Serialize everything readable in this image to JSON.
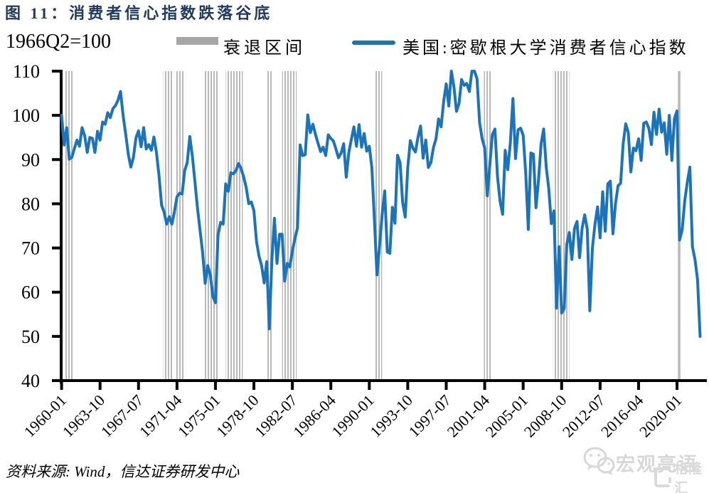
{
  "header": {
    "title": "图 11：消费者信心指数跌落谷底"
  },
  "legend": {
    "index_note": "1966Q2=100",
    "items": [
      {
        "type": "band",
        "label": "衰退区间",
        "swatch_color": "#a6a6a6"
      },
      {
        "type": "line",
        "label": "美国:密歇根大学消费者信心指数",
        "swatch_color": "#1b73b9"
      }
    ]
  },
  "footer": {
    "source": "资料来源: Wind，信达证券研发中心"
  },
  "watermark": {
    "wechat_name": "宏观亮语",
    "logo_text": "格隆汇"
  },
  "colors": {
    "series_line": "#1b73b9",
    "recession_band": "#b9b9b9",
    "legend_band_swatch": "#a6a6a6",
    "title": "#203a64",
    "axis": "#000000"
  },
  "chart_data": {
    "type": "line",
    "title": "消费者信心指数跌落谷底",
    "unit_note": "1966Q2=100",
    "grid": false,
    "legend_position": "top",
    "x_axis": {
      "start_month": "1960-01",
      "end_month": "2022-06",
      "tick_interval_months": 45,
      "tick_labels": [
        "1960-01",
        "1963-10",
        "1967-07",
        "1971-04",
        "1975-01",
        "1978-10",
        "1982-07",
        "1986-04",
        "1990-01",
        "1993-10",
        "1997-07",
        "2001-04",
        "2005-01",
        "2008-10",
        "2012-07",
        "2016-04",
        "2020-01"
      ]
    },
    "y_axis": {
      "min": 40,
      "max": 110,
      "ticks": [
        40,
        50,
        60,
        70,
        80,
        90,
        100,
        110
      ],
      "clip_above": 110
    },
    "series": [
      {
        "name": "美国:密歇根大学消费者信心指数",
        "color": "#1b73b9",
        "frequency": "quarterly",
        "start_quarter": "1960Q1",
        "values": [
          100.0,
          93.3,
          97.2,
          90.1,
          90.5,
          92.5,
          94.4,
          93.0,
          97.2,
          95.4,
          91.6,
          95.0,
          94.8,
          91.6,
          96.4,
          94.4,
          98.5,
          98.0,
          100.6,
          99.5,
          101.5,
          102.2,
          103.4,
          105.4,
          100.0,
          95.7,
          91.2,
          88.3,
          90.5,
          94.9,
          96.5,
          92.9,
          97.2,
          92.4,
          93.4,
          92.1,
          95.1,
          91.6,
          86.4,
          79.7,
          78.1,
          75.4,
          77.1,
          75.4,
          78.2,
          81.6,
          82.4,
          82.2,
          87.5,
          89.3,
          95.2,
          90.8,
          85.0,
          79.0,
          74.0,
          69.0,
          62.0,
          66.0,
          64.0,
          59.0,
          57.6,
          72.9,
          75.8,
          75.4,
          84.5,
          82.8,
          87.0,
          86.8,
          87.5,
          89.1,
          88.0,
          86.1,
          83.7,
          80.0,
          80.4,
          78.5,
          71.5,
          68.1,
          66.0,
          62.1,
          66.9,
          51.7,
          67.3,
          76.7,
          66.5,
          73.1,
          73.1,
          62.5,
          66.5,
          65.7,
          69.3,
          72.1,
          74.6,
          93.3,
          90.9,
          91.1,
          100.1,
          96.1,
          98.0,
          95.7,
          93.7,
          91.8,
          92.8,
          90.9,
          95.6,
          94.8,
          94.2,
          92.4,
          90.4,
          91.5,
          93.6,
          86.0,
          91.6,
          94.6,
          97.4,
          93.0,
          97.9,
          92.8,
          95.9,
          91.9,
          93.0,
          88.2,
          76.4,
          63.9,
          70.4,
          77.6,
          82.9,
          69.1,
          68.8,
          79.2,
          75.6,
          91.0,
          89.3,
          80.3,
          77.0,
          88.2,
          94.3,
          92.6,
          91.7,
          95.1,
          97.6,
          90.3,
          94.4,
          88.2,
          89.3,
          92.7,
          94.7,
          99.2,
          97.4,
          103.2,
          107.1,
          102.1,
          110.4,
          106.5,
          100.9,
          102.7,
          108.1,
          106.8,
          107.2,
          105.4,
          112.0,
          110.7,
          108.3,
          98.4,
          94.7,
          92.6,
          81.8,
          88.8,
          95.7,
          96.9,
          86.1,
          80.6,
          77.6,
          92.1,
          87.7,
          93.7,
          103.8,
          90.2,
          96.7,
          97.1,
          95.5,
          86.9,
          74.2,
          91.5,
          91.2,
          79.1,
          85.4,
          93.6,
          96.9,
          88.3,
          83.4,
          75.5,
          78.4,
          56.4,
          70.3,
          55.3,
          56.3,
          70.8,
          73.5,
          67.4,
          74.4,
          76.0,
          67.8,
          74.5,
          77.5,
          74.3,
          55.8,
          69.9,
          75.3,
          79.3,
          72.3,
          82.7,
          73.8,
          84.5,
          85.1,
          73.2,
          80.0,
          84.1,
          84.6,
          93.6,
          98.1,
          96.1,
          87.2,
          92.6,
          92.0,
          94.7,
          89.8,
          98.2,
          98.5,
          97.1,
          93.4,
          100.7,
          95.7,
          101.4,
          96.2,
          98.3,
          91.2,
          100.0,
          89.8,
          99.3,
          101.0,
          71.8,
          74.1,
          80.7,
          84.9,
          88.3,
          70.3,
          67.4,
          62.8,
          50.0
        ]
      }
    ],
    "recession_bands": {
      "label": "衰退区间",
      "color": "#b9b9b9",
      "periods": [
        [
          "1960-04",
          "1961-02"
        ],
        [
          "1969-12",
          "1970-11"
        ],
        [
          "1971-03",
          "1971-12"
        ],
        [
          "1973-11",
          "1975-03"
        ],
        [
          "1976-01",
          "1977-08"
        ],
        [
          "1980-01",
          "1980-07"
        ],
        [
          "1981-07",
          "1982-11"
        ],
        [
          "1990-07",
          "1991-03"
        ],
        [
          "2001-03",
          "2001-11"
        ],
        [
          "2007-12",
          "2009-06"
        ],
        [
          "2020-02",
          "2020-04"
        ]
      ]
    }
  }
}
